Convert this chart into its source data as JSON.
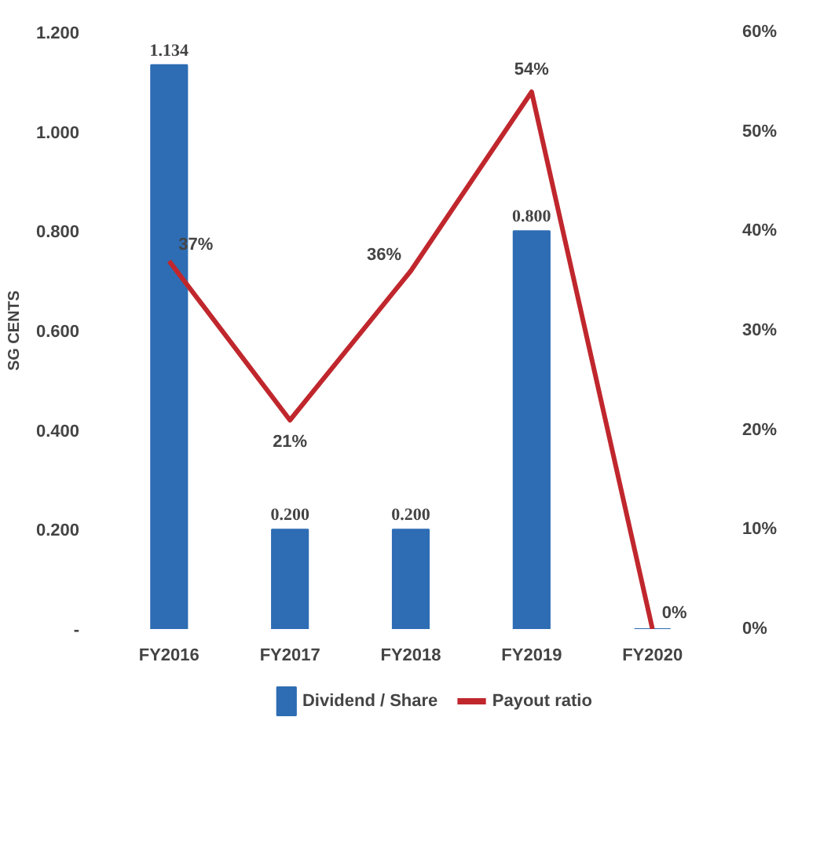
{
  "chart_data": {
    "type": "bar",
    "ylabel": "SG CENTS",
    "categories": [
      "FY2016",
      "FY2017",
      "FY2018",
      "FY2019",
      "FY2020"
    ],
    "series": [
      {
        "name": "Dividend / Share",
        "color": "#2e6db4",
        "values": [
          1.134,
          0.2,
          0.2,
          0.8,
          0
        ],
        "value_labels": [
          "1.134",
          "0.200",
          "0.200",
          "0.800",
          null
        ]
      },
      {
        "name": "Payout ratio",
        "type": "line",
        "axis": "y2",
        "color": "#c0272d",
        "values": [
          37,
          21,
          36,
          54,
          0
        ],
        "value_labels": [
          "37%",
          "21%",
          "36%",
          "54%",
          "0%"
        ]
      }
    ],
    "ylim": [
      0,
      1.2
    ],
    "yticks": [
      {
        "value": 0,
        "label": "-"
      },
      {
        "value": 0.2,
        "label": "0.200"
      },
      {
        "value": 0.4,
        "label": "0.400"
      },
      {
        "value": 0.6,
        "label": "0.600"
      },
      {
        "value": 0.8,
        "label": "0.800"
      },
      {
        "value": 1.0,
        "label": "1.000"
      },
      {
        "value": 1.2,
        "label": "1.200"
      }
    ],
    "y2lim": [
      0,
      60
    ],
    "y2ticks": [
      {
        "value": 0,
        "label": "0%"
      },
      {
        "value": 10,
        "label": "10%"
      },
      {
        "value": 20,
        "label": "20%"
      },
      {
        "value": 30,
        "label": "30%"
      },
      {
        "value": 40,
        "label": "40%"
      },
      {
        "value": 50,
        "label": "50%"
      },
      {
        "value": 60,
        "label": "60%"
      }
    ],
    "grid": false,
    "legend": "bottom",
    "marker": "none",
    "line_style": "solid"
  }
}
